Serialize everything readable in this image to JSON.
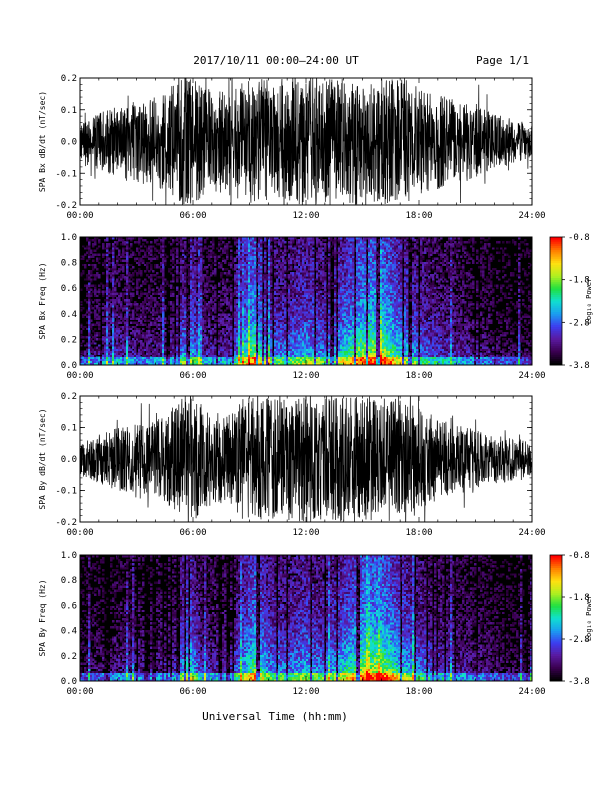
{
  "header": {
    "title": "2017/10/11   00:00–24:00 UT",
    "page": "Page 1/1"
  },
  "footer": {
    "xlabel": "Universal Time (hh:mm)"
  },
  "colors": {
    "trace": "#000000",
    "spectrogram_background": "#000000",
    "colormap": [
      "#000000",
      "#3a0050",
      "#5a1aa0",
      "#3d3df0",
      "#1a9ef0",
      "#10e0d0",
      "#20e040",
      "#b0f020",
      "#ffe010",
      "#ff8000",
      "#ff0000"
    ]
  },
  "chart_data": [
    {
      "type": "line",
      "name": "bx-waveform",
      "ylabel": "SPA Bx dB/dt (nT/sec)",
      "xlim": [
        0,
        24
      ],
      "ylim": [
        -0.2,
        0.2
      ],
      "xticks": [
        "00:00",
        "06:00",
        "12:00",
        "18:00",
        "24:00"
      ],
      "yticks": [
        "-0.2",
        "-0.1",
        "0.0",
        "0.1",
        "0.2"
      ],
      "envelope": {
        "x": [
          0,
          1,
          2,
          3,
          4,
          5,
          5.5,
          6,
          7,
          8,
          9,
          9.3,
          10,
          11,
          12,
          13,
          14,
          15,
          16,
          17,
          17.5,
          18,
          19,
          20,
          21,
          22,
          23,
          24
        ],
        "amplitude": [
          0.05,
          0.09,
          0.11,
          0.13,
          0.14,
          0.18,
          0.2,
          0.2,
          0.16,
          0.17,
          0.2,
          0.2,
          0.2,
          0.2,
          0.2,
          0.2,
          0.2,
          0.2,
          0.2,
          0.2,
          0.19,
          0.17,
          0.15,
          0.13,
          0.12,
          0.09,
          0.07,
          0.05
        ]
      }
    },
    {
      "type": "heatmap",
      "name": "bx-spectrogram",
      "ylabel": "SPA Bx Freq (Hz)",
      "xlim": [
        0,
        24
      ],
      "ylim": [
        0,
        1.0
      ],
      "xticks": [
        "00:00",
        "06:00",
        "12:00",
        "18:00",
        "24:00"
      ],
      "yticks": [
        "0.0",
        "0.2",
        "0.4",
        "0.6",
        "0.8",
        "1.0"
      ],
      "colorbar": {
        "label": "Log₁₀ Power",
        "range": [
          -3.8,
          -0.8
        ],
        "ticks": [
          "-0.8",
          "-1.8",
          "-2.8",
          "-3.8"
        ]
      },
      "activity": {
        "x": [
          0,
          1,
          2,
          3,
          4,
          5,
          5.8,
          6.5,
          8,
          9,
          9.3,
          10,
          11,
          12,
          13,
          14,
          15,
          16,
          17,
          18,
          19,
          20,
          21,
          22,
          23,
          24
        ],
        "level": [
          0.15,
          0.25,
          0.3,
          0.25,
          0.25,
          0.3,
          0.6,
          0.3,
          0.3,
          0.7,
          0.8,
          0.45,
          0.45,
          0.55,
          0.45,
          0.6,
          0.8,
          0.85,
          0.6,
          0.45,
          0.35,
          0.3,
          0.25,
          0.2,
          0.15,
          0.15
        ]
      }
    },
    {
      "type": "line",
      "name": "by-waveform",
      "ylabel": "SPA By dB/dt (nT/sec)",
      "xlim": [
        0,
        24
      ],
      "ylim": [
        -0.2,
        0.2
      ],
      "xticks": [
        "00:00",
        "06:00",
        "12:00",
        "18:00",
        "24:00"
      ],
      "yticks": [
        "-0.2",
        "-0.1",
        "0.0",
        "0.1",
        "0.2"
      ],
      "envelope": {
        "x": [
          0,
          1,
          2,
          3,
          4,
          5,
          5.5,
          6,
          7,
          8,
          8.7,
          9,
          10,
          11,
          12,
          13,
          14,
          15,
          16,
          17,
          17.5,
          18,
          19,
          20,
          21,
          22,
          23,
          24
        ],
        "amplitude": [
          0.05,
          0.08,
          0.1,
          0.11,
          0.12,
          0.16,
          0.2,
          0.2,
          0.15,
          0.14,
          0.2,
          0.2,
          0.2,
          0.2,
          0.2,
          0.2,
          0.2,
          0.2,
          0.2,
          0.2,
          0.19,
          0.17,
          0.13,
          0.11,
          0.1,
          0.08,
          0.07,
          0.05
        ]
      }
    },
    {
      "type": "heatmap",
      "name": "by-spectrogram",
      "ylabel": "SPA By Freq (Hz)",
      "xlim": [
        0,
        24
      ],
      "ylim": [
        0,
        1.0
      ],
      "xticks": [
        "00:00",
        "06:00",
        "12:00",
        "18:00",
        "24:00"
      ],
      "yticks": [
        "0.0",
        "0.2",
        "0.4",
        "0.6",
        "0.8",
        "1.0"
      ],
      "colorbar": {
        "label": "Log₁₀ Power",
        "range": [
          -3.8,
          -0.8
        ],
        "ticks": [
          "-0.8",
          "-1.8",
          "-2.8",
          "-3.8"
        ]
      },
      "activity": {
        "x": [
          0,
          1,
          2,
          3,
          4,
          5,
          5.8,
          6.5,
          8,
          9,
          9.3,
          10,
          11,
          12,
          13,
          14,
          15,
          16,
          17,
          18,
          19,
          20,
          21,
          22,
          23,
          24
        ],
        "level": [
          0.15,
          0.2,
          0.25,
          0.25,
          0.25,
          0.3,
          0.65,
          0.3,
          0.3,
          0.65,
          0.75,
          0.5,
          0.45,
          0.55,
          0.45,
          0.6,
          0.8,
          0.85,
          0.6,
          0.45,
          0.35,
          0.3,
          0.25,
          0.2,
          0.15,
          0.15
        ]
      }
    }
  ]
}
